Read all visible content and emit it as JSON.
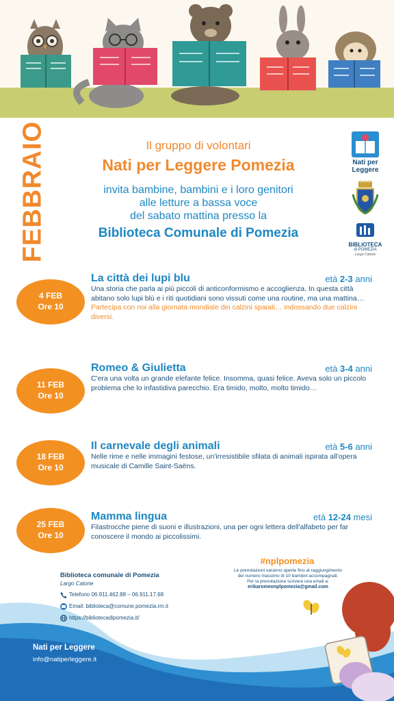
{
  "colors": {
    "orange": "#f39022",
    "blue": "#1d87c2",
    "navy": "#1a4f7a",
    "floor": "#c9cd72"
  },
  "month": "FEBBRAIO",
  "intro": {
    "line1": "Il gruppo di volontari",
    "line2": "Nati per Leggere Pomezia",
    "line3a": "invita bambine, bambini e i loro genitori",
    "line3b": "alle letture a bassa voce",
    "line3c": "del sabato mattina presso la",
    "line4": "Biblioteca Comunale di Pomezia"
  },
  "logos": {
    "npl_line1": "Nati per",
    "npl_line2": "Leggere",
    "bib_name": "BIBLIOTECA",
    "bib_city": "di POMEZIA",
    "bib_sub": "Largo Catone"
  },
  "events": [
    {
      "date": "4 FEB",
      "time": "Ore 10",
      "title": "La città dei lupi blu",
      "age_prefix": "età ",
      "age_value": "2-3",
      "age_unit": " anni",
      "desc": "Una storia che parla ai più piccoli di anticonformismo e accoglienza. In questa città abitano solo lupi blù e i riti quotidiani sono vissuti come una routine, ma una mattina…",
      "note": "Partecipa con noi alla giornata mondiale dei calzini spaiati… indossando due calzini diversi."
    },
    {
      "date": "11 FEB",
      "time": "Ore 10",
      "title": "Romeo & Giulietta",
      "age_prefix": "età ",
      "age_value": "3-4",
      "age_unit": " anni",
      "desc": "C'era una volta un grande elefante felice. Insomma, quasi felice. Aveva solo un piccolo problema che lo infastidiva parecchio. Era timido, molto, molto timido…",
      "note": ""
    },
    {
      "date": "18 FEB",
      "time": "Ore 10",
      "title": "Il carnevale degli animali",
      "age_prefix": "età ",
      "age_value": "5-6",
      "age_unit": " anni",
      "desc": "Nelle rime e nelle immagini festose, un'irresistibile sfilata di animali ispirata all'opera musicale di Camille Saint-Saëns.",
      "note": ""
    },
    {
      "date": "25 FEB",
      "time": "Ore 10",
      "title": "Mamma lingua",
      "age_prefix": "età ",
      "age_value": "12-24",
      "age_unit": " mesi",
      "desc": "Filastrocche piene di suoni e illustrazioni, una per ogni lettera dell'alfabeto per far conoscere il mondo ai piccolissimi.",
      "note": ""
    }
  ],
  "contact": {
    "name": "Biblioteca comunale di Pomezia",
    "address": "Largo Catone",
    "phone": "Telefono 06.911.462.88 – 06.911.17.68",
    "email": "Email: biblioteca@comune.pomezia.rm.it",
    "website": "https://bibliotecadipomezia.it/"
  },
  "booking": {
    "hashtag": "#nplpomezia",
    "line1": "Le prenotazioni saranno aperte fino al raggiungimento",
    "line2": "del numero massimo di 10 bambini accompagnati.",
    "line3": "Per la prenotazione scrivere una email a:",
    "email": "erikaromeonplpomezia@gmail.com"
  },
  "brand": {
    "name": "Nati per Leggere",
    "email": "info@natiperleggere.it"
  }
}
